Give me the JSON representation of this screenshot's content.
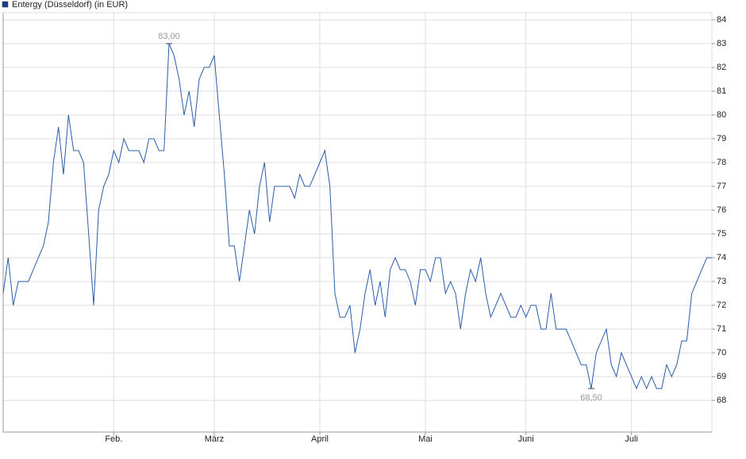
{
  "chart_data": {
    "type": "line",
    "legend_position": "top-left",
    "y_axis_side": "right",
    "grid": true,
    "ylim": [
      66.67,
      84.3
    ],
    "yticks": [
      68,
      69,
      70,
      71,
      72,
      73,
      74,
      75,
      76,
      77,
      78,
      79,
      80,
      81,
      82,
      83,
      84
    ],
    "categories": [
      null,
      null,
      null,
      null,
      null,
      null,
      null,
      null,
      null,
      null,
      null,
      null,
      null,
      null,
      null,
      null,
      null,
      null,
      null,
      null,
      null,
      null,
      "Feb.",
      null,
      null,
      null,
      null,
      null,
      null,
      null,
      null,
      null,
      null,
      null,
      null,
      null,
      null,
      null,
      null,
      null,
      null,
      null,
      "März",
      null,
      null,
      null,
      null,
      null,
      null,
      null,
      null,
      null,
      null,
      null,
      null,
      null,
      null,
      null,
      null,
      null,
      null,
      null,
      null,
      "April",
      null,
      null,
      null,
      null,
      null,
      null,
      null,
      null,
      null,
      null,
      null,
      null,
      null,
      null,
      null,
      null,
      null,
      null,
      null,
      null,
      "Mai",
      null,
      null,
      null,
      null,
      null,
      null,
      null,
      null,
      null,
      null,
      null,
      null,
      null,
      null,
      null,
      null,
      null,
      null,
      null,
      "Juni",
      null,
      null,
      null,
      null,
      null,
      null,
      null,
      null,
      null,
      null,
      null,
      null,
      null,
      null,
      null,
      null,
      null,
      null,
      null,
      null,
      "Juli",
      null,
      null,
      null,
      null,
      null,
      null,
      null,
      null,
      null,
      null,
      null,
      null,
      null,
      null,
      null,
      null
    ],
    "series": [
      {
        "name": "Entergy (Düsseldorf) (in EUR)",
        "color": "#2a5ca8",
        "legend_color": "#1a3f8f",
        "values": [
          72.5,
          74,
          72,
          73,
          73,
          73,
          73.5,
          74,
          74.5,
          75.5,
          78,
          79.5,
          77.5,
          80,
          78.5,
          78.5,
          78,
          75,
          72,
          76,
          77,
          77.5,
          78.5,
          78,
          79,
          78.5,
          78.5,
          78.5,
          78,
          79,
          79,
          78.5,
          78.5,
          83,
          82.5,
          81.5,
          80,
          81,
          79.5,
          81.5,
          82,
          82,
          82.5,
          80,
          77.5,
          74.5,
          74.5,
          73,
          74.5,
          76,
          75,
          77,
          78,
          75.5,
          77,
          77,
          77,
          77,
          76.5,
          77.5,
          77,
          77,
          77.5,
          78,
          78.5,
          77,
          72.5,
          71.5,
          71.5,
          72,
          70,
          71,
          72.5,
          73.5,
          72,
          73,
          71.5,
          73.5,
          74,
          73.5,
          73.5,
          73,
          72,
          73.5,
          73.5,
          73,
          74,
          74,
          72.5,
          73,
          72.5,
          71,
          72.5,
          73.5,
          73,
          74,
          72.5,
          71.5,
          72,
          72.5,
          72,
          71.5,
          71.5,
          72,
          71.5,
          72,
          72,
          71,
          71,
          72.5,
          71,
          71,
          71,
          70.5,
          70,
          69.5,
          69.5,
          68.5,
          70,
          70.5,
          71,
          69.5,
          69,
          70,
          69.5,
          69,
          68.5,
          69,
          68.5,
          69,
          68.5,
          68.5,
          69.5,
          69,
          69.5,
          70.5,
          70.5,
          72.5,
          73,
          73.5,
          74,
          74
        ]
      }
    ],
    "annotations": [
      {
        "value": 83,
        "label": "83,00",
        "position": "above"
      },
      {
        "value": 68.5,
        "label": "68,50",
        "position": "below"
      }
    ]
  }
}
